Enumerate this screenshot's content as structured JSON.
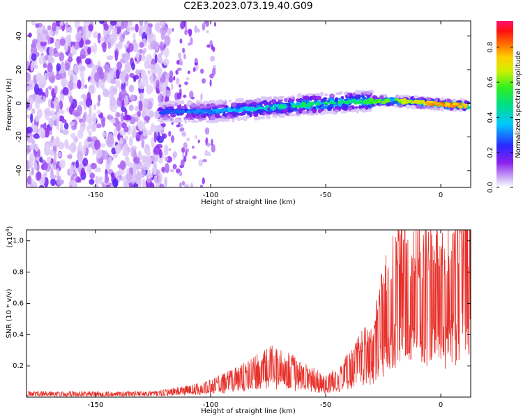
{
  "title": "C2E3.2023.073.19.40.G09",
  "colors": {
    "snr_line": "#e8302a",
    "spectro_low": "#d9c4f7",
    "spectro_mid": "#6b10e0",
    "grid": "#000000"
  },
  "chart_data": [
    {
      "type": "heatmap",
      "xlabel": "Height of straight line (km)",
      "ylabel": "Frequency (Hz)",
      "xlim": [
        -180,
        13
      ],
      "ylim": [
        -50,
        49
      ],
      "xticks": [
        -150,
        -100,
        -50,
        0
      ],
      "yticks": [
        -40,
        -20,
        0,
        20,
        40
      ],
      "xtick_labels": [
        "-150",
        "-100",
        "-50",
        "0"
      ],
      "ytick_labels": [
        "-40",
        "-20",
        "0",
        "20",
        "40"
      ],
      "ridge": {
        "description_x": [
          -122,
          -100,
          -80,
          -60,
          -40,
          -20,
          0,
          12
        ],
        "frequency": [
          -5,
          -5,
          -3,
          -1,
          1,
          1.5,
          -0.5,
          -1.5
        ],
        "peak_amplitude": [
          0.3,
          0.35,
          0.45,
          0.55,
          0.55,
          0.7,
          0.9,
          0.85
        ]
      },
      "colorbar": {
        "label": "Normalized spectral amplitude",
        "range": [
          0,
          0.95
        ],
        "ticks": [
          0.0,
          0.2,
          0.4,
          0.6,
          0.8
        ],
        "tick_labels": [
          "0.0",
          "0.2",
          "0.4",
          "0.6",
          "0.8"
        ]
      }
    },
    {
      "type": "line",
      "xlabel": "Height of straight line (km)",
      "ylabel": "SNR (10 * v/v)",
      "scale_label": "(x10",
      "scale_exp": "4",
      "scale_close": ")",
      "xlim": [
        -180,
        13
      ],
      "ylim": [
        0,
        1.07
      ],
      "xticks": [
        -150,
        -100,
        -50,
        0
      ],
      "yticks": [
        0.2,
        0.4,
        0.6,
        0.8,
        1.0
      ],
      "xtick_labels": [
        "-150",
        "-100",
        "-50",
        "0"
      ],
      "ytick_labels": [
        "0.2",
        "0.4",
        "0.6",
        "0.8",
        "1.0"
      ],
      "series": [
        {
          "x": [
            -180,
            -160,
            -140,
            -125,
            -118,
            -110,
            -100,
            -95,
            -90,
            -85,
            -80,
            -75,
            -70,
            -65,
            -60,
            -55,
            -50,
            -45,
            -42,
            -38,
            -35,
            -30,
            -28,
            -25,
            -22,
            -20,
            -18,
            -15,
            -12,
            -10,
            -8,
            -5,
            -2,
            0,
            3,
            6,
            8,
            10,
            12
          ],
          "values": [
            0.02,
            0.02,
            0.02,
            0.02,
            0.03,
            0.04,
            0.06,
            0.08,
            0.1,
            0.12,
            0.15,
            0.18,
            0.17,
            0.15,
            0.12,
            0.1,
            0.08,
            0.1,
            0.13,
            0.18,
            0.22,
            0.28,
            0.35,
            0.45,
            0.55,
            0.6,
            0.62,
            0.65,
            0.6,
            0.58,
            0.6,
            0.62,
            0.58,
            0.55,
            0.62,
            0.68,
            0.7,
            0.72,
            0.68
          ]
        }
      ]
    }
  ]
}
